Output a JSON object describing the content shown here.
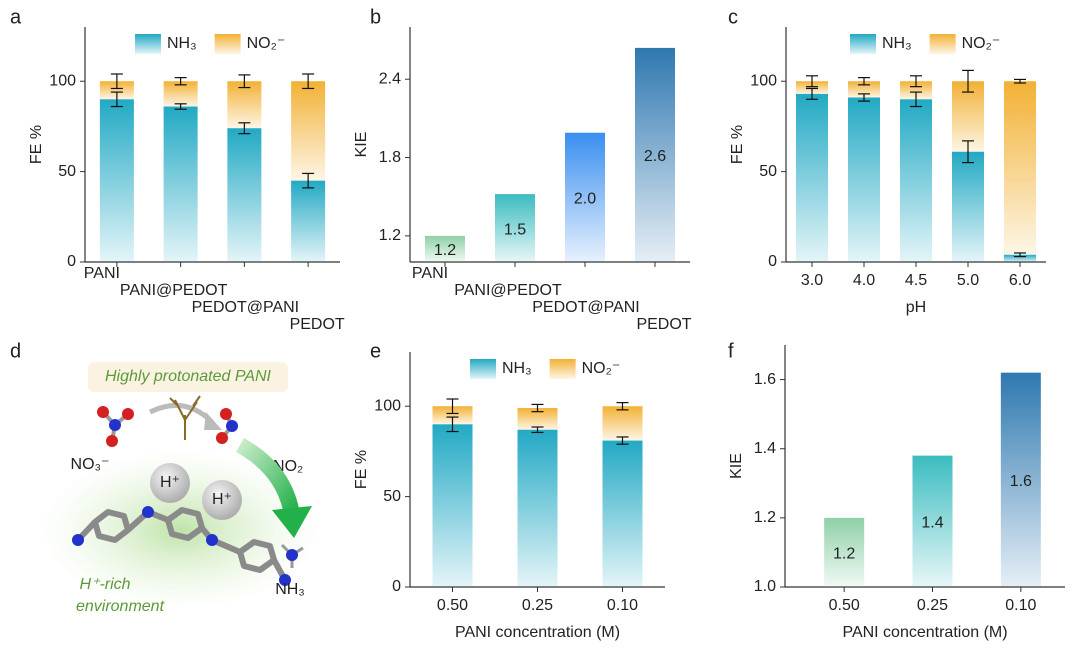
{
  "chart_data": [
    {
      "type": "bar",
      "stacked": true,
      "label": "a",
      "ylabel": "FE %",
      "categories": [
        "PANI",
        "PANI@PEDOT",
        "PEDOT@PANI",
        "PEDOT"
      ],
      "series": [
        {
          "name": "NH₃",
          "color": "#22a9c4",
          "values": [
            90,
            86,
            74,
            45
          ],
          "errors": [
            4,
            1.5,
            3,
            4
          ]
        },
        {
          "name": "NO₂⁻",
          "color": "#f2b134",
          "values": [
            10,
            14,
            26,
            55
          ],
          "errors": [
            4,
            2,
            3.5,
            4
          ]
        }
      ],
      "ylim": [
        0,
        130
      ],
      "yticks": [
        0,
        50,
        100
      ],
      "legend": "top"
    },
    {
      "type": "bar",
      "label": "b",
      "ylabel": "KIE",
      "categories": [
        "PANI",
        "PANI@PEDOT",
        "PEDOT@PANI",
        "PEDOT"
      ],
      "values": [
        1.2,
        1.52,
        1.99,
        2.64
      ],
      "value_labels": [
        "1.2",
        "1.5",
        "2.0",
        "2.6"
      ],
      "colors": [
        "#8fd0a8",
        "#3bbcc0",
        "#3a8ef0",
        "#2e78b0"
      ],
      "ylim": [
        1.0,
        2.8
      ],
      "yticks": [
        1.2,
        1.8,
        2.4
      ]
    },
    {
      "type": "bar",
      "stacked": true,
      "label": "c",
      "ylabel": "FE %",
      "xlabel": "pH",
      "categories": [
        "3.0",
        "4.0",
        "4.5",
        "5.0",
        "6.0"
      ],
      "series": [
        {
          "name": "NH₃",
          "color": "#22a9c4",
          "values": [
            93,
            91,
            90,
            61,
            4
          ],
          "errors": [
            3,
            2,
            4,
            6,
            1
          ]
        },
        {
          "name": "NO₂⁻",
          "color": "#f2b134",
          "values": [
            7,
            9,
            10,
            39,
            96
          ],
          "errors": [
            3,
            2,
            3,
            6,
            1
          ]
        }
      ],
      "ylim": [
        0,
        130
      ],
      "yticks": [
        0,
        50,
        100
      ],
      "legend": "top"
    },
    {
      "type": "bar",
      "stacked": true,
      "label": "e",
      "ylabel": "FE %",
      "xlabel": "PANI concentration (M)",
      "categories": [
        "0.50",
        "0.25",
        "0.10"
      ],
      "series": [
        {
          "name": "NH₃",
          "color": "#22a9c4",
          "values": [
            90,
            87,
            81
          ],
          "errors": [
            4,
            1.5,
            2
          ]
        },
        {
          "name": "NO₂⁻",
          "color": "#f2b134",
          "values": [
            10,
            12,
            19
          ],
          "errors": [
            4,
            2,
            2
          ]
        }
      ],
      "ylim": [
        0,
        130
      ],
      "yticks": [
        0,
        50,
        100
      ],
      "legend": "top"
    },
    {
      "type": "bar",
      "label": "f",
      "ylabel": "KIE",
      "xlabel": "PANI concentration (M)",
      "categories": [
        "0.50",
        "0.25",
        "0.10"
      ],
      "values": [
        1.2,
        1.38,
        1.62
      ],
      "value_labels": [
        "1.2",
        "1.4",
        "1.6"
      ],
      "colors": [
        "#8fd0a8",
        "#3bbcc0",
        "#2e78b0"
      ],
      "ylim": [
        1.0,
        1.7
      ],
      "yticks": [
        {
          "value": 1.0,
          "label": "1.0"
        },
        1.2,
        1.4,
        1.6
      ]
    }
  ],
  "diagram": {
    "label": "d",
    "banner": "Highly protonated PANI",
    "reactant": "NO₃⁻",
    "intermediate": "*NO₂",
    "proton_1": "H⁺",
    "proton_2": "H⁺",
    "product": "NH₃",
    "environment_1": "H⁺-rich",
    "environment_2": "environment"
  }
}
